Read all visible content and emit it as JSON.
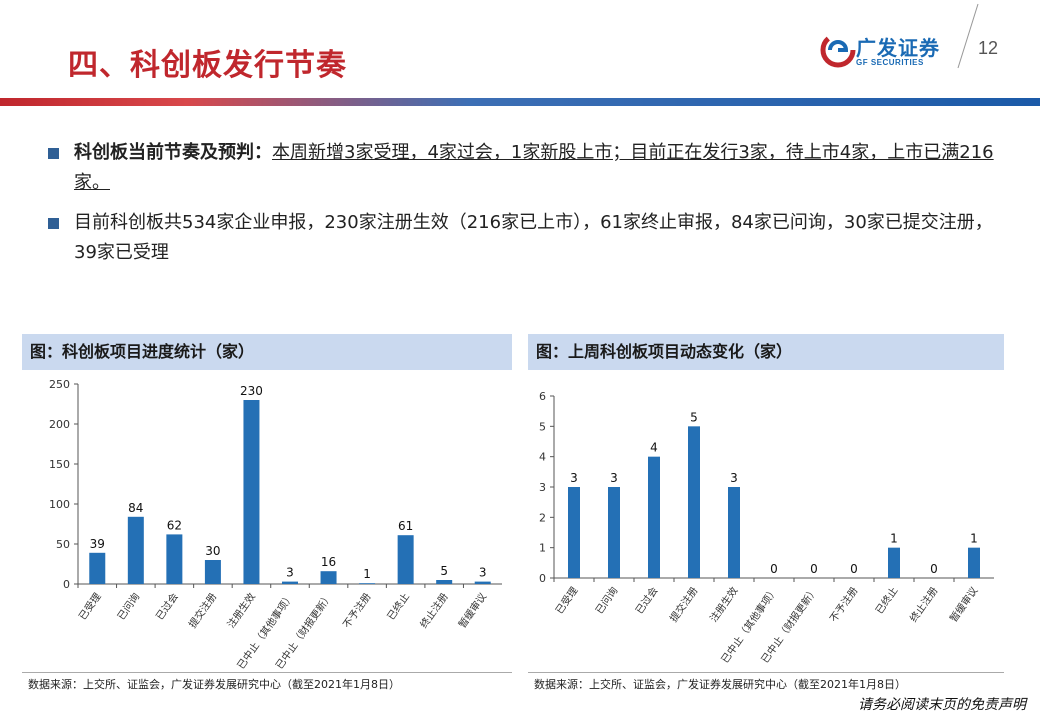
{
  "header": {
    "title": "四、科创板发行节奏",
    "logo_cn": "广发证券",
    "logo_en": "GF SECURITIES",
    "page_number": "12"
  },
  "bullets": [
    {
      "lead": "科创板当前节奏及预判：",
      "text": "本周新增3家受理，4家过会，1家新股上市；目前正在发行3家，待上市4家，上市已满216家。"
    },
    {
      "text": "目前科创板共534家企业申报，230家注册生效（216家已上市），61家终止审报，84家已问询，30家已提交注册，39家已受理"
    }
  ],
  "colors": {
    "bar": "#2470b5",
    "title_red": "#c0272d",
    "panel_head": "#cad9ef"
  },
  "left_panel": {
    "title": "图：科创板项目进度统计（家）",
    "source": "数据来源：上交所、证监会，广发证券发展研究中心（截至2021年1月8日）"
  },
  "right_panel": {
    "title": "图：上周科创板项目动态变化（家）",
    "source": "数据来源：上交所、证监会，广发证券发展研究中心（截至2021年1月8日）"
  },
  "chart_data": [
    {
      "type": "bar",
      "title": "图：科创板项目进度统计（家）",
      "categories": [
        "已受理",
        "已问询",
        "已过会",
        "提交注册",
        "注册生效",
        "已中止（其他事项）",
        "已中止（财报更新）",
        "不予注册",
        "已终止",
        "终止注册",
        "暂缓审议"
      ],
      "values": [
        39,
        84,
        62,
        30,
        230,
        3,
        16,
        1,
        61,
        5,
        3
      ],
      "ylim": [
        0,
        250
      ],
      "yticks": [
        0,
        50,
        100,
        150,
        200,
        250
      ],
      "grid": false,
      "legend": "none"
    },
    {
      "type": "bar",
      "title": "图：上周科创板项目动态变化（家）",
      "categories": [
        "已受理",
        "已问询",
        "已过会",
        "提交注册",
        "注册生效",
        "已中止（其他事项）",
        "已中止（财报更新）",
        "不予注册",
        "已终止",
        "终止注册",
        "暂缓审议"
      ],
      "values": [
        3,
        3,
        4,
        5,
        3,
        0,
        0,
        0,
        1,
        0,
        1
      ],
      "ylim": [
        0,
        6
      ],
      "yticks": [
        0,
        1,
        2,
        3,
        4,
        5,
        6
      ],
      "grid": false,
      "legend": "none"
    }
  ],
  "footer": {
    "note": "请务必阅读末页的免责声明"
  }
}
